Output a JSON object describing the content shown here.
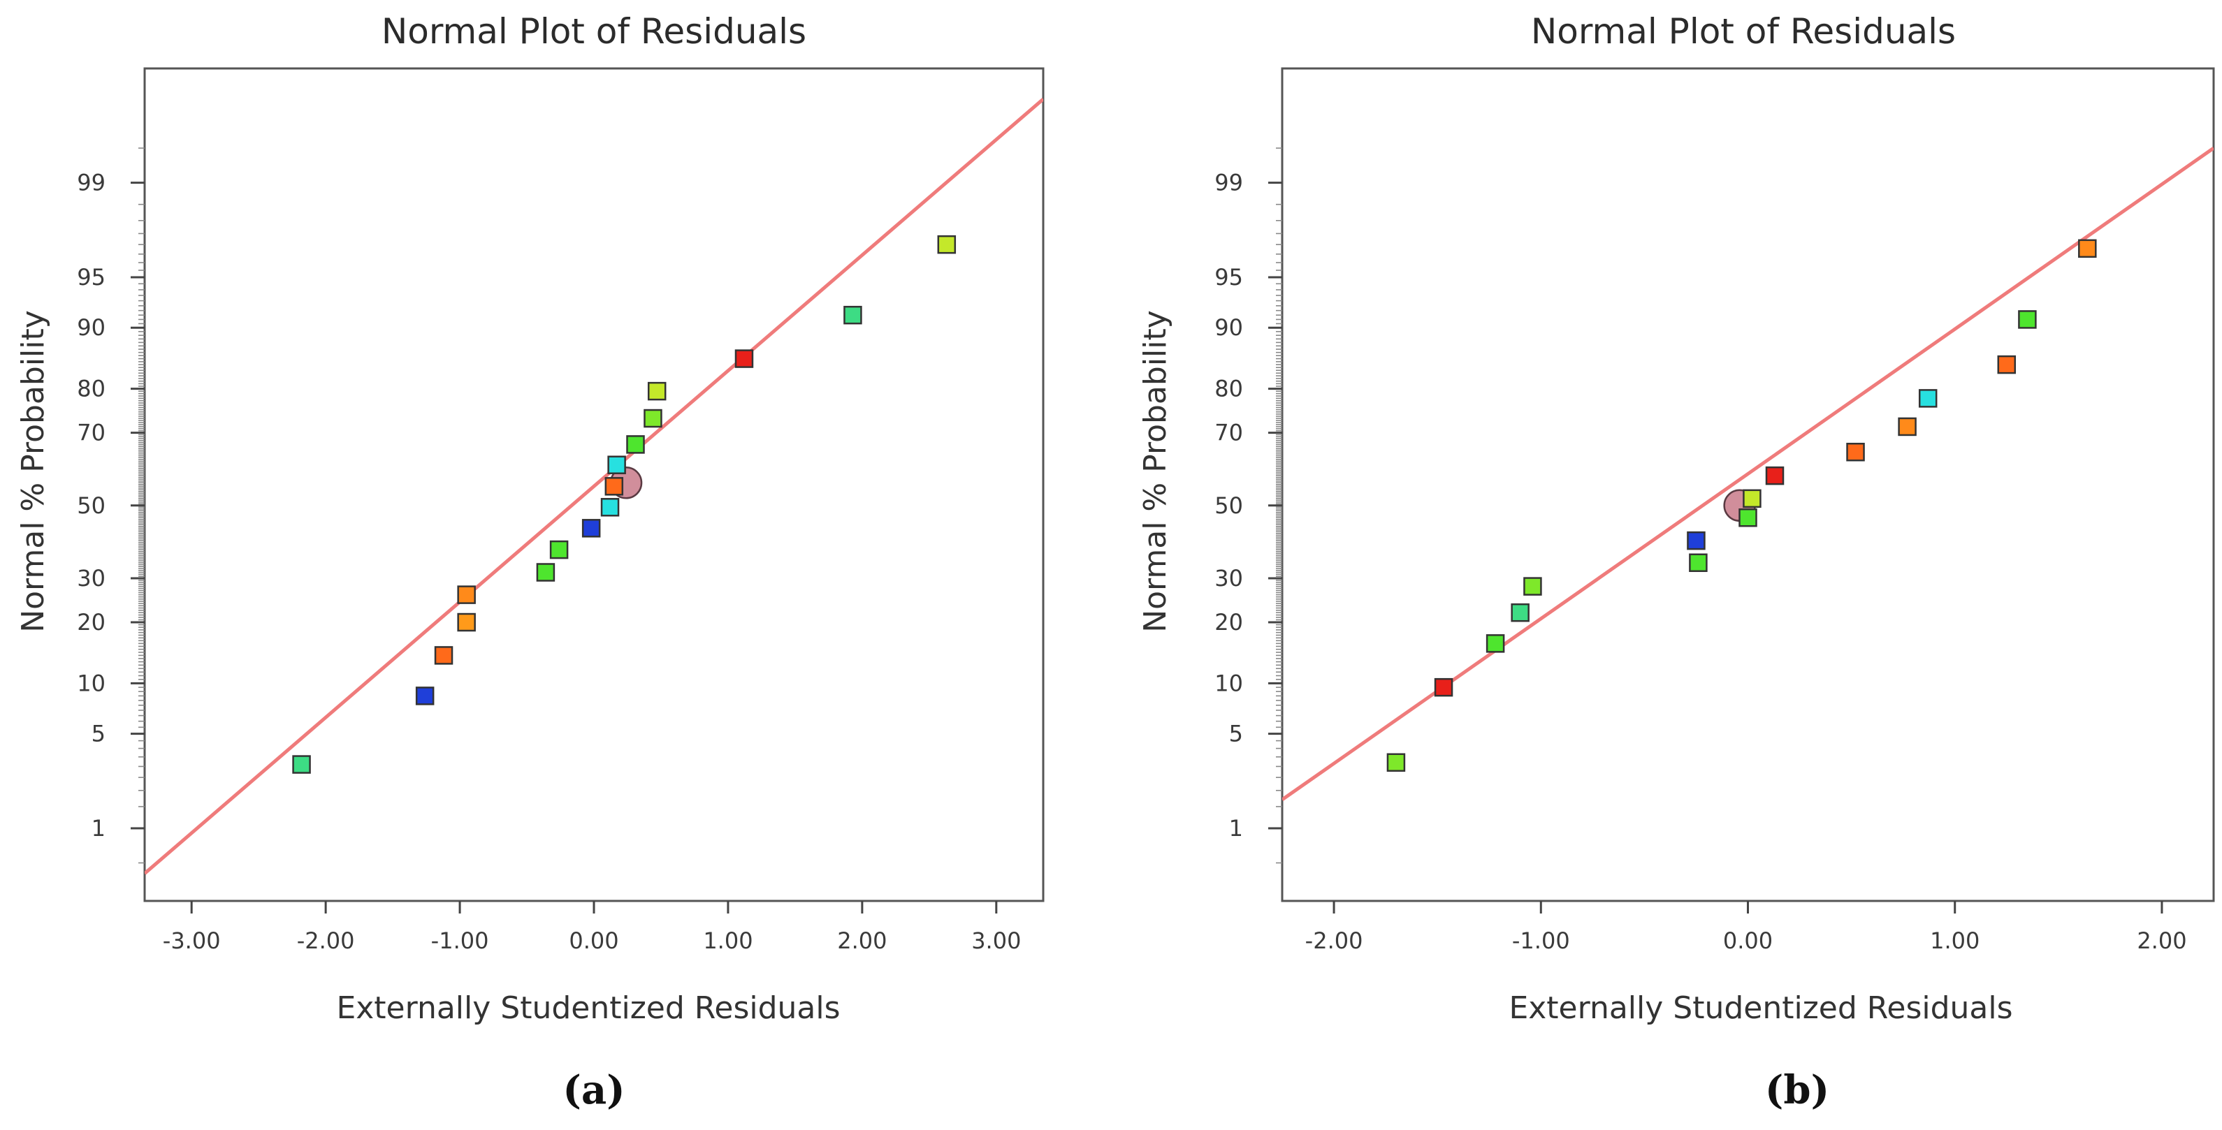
{
  "chart_data": [
    {
      "type": "scatter",
      "title": "Normal Plot of Residuals",
      "xlabel": "Externally Studentized Residuals",
      "ylabel": "Normal % Probability",
      "caption": "(a)",
      "xlim": [
        -3.35,
        3.35
      ],
      "x_ticks": [
        -3,
        -2,
        -1,
        0,
        1,
        2,
        3
      ],
      "x_tick_labels": [
        "-3.00",
        "-2.00",
        "-1.00",
        "0.00",
        "1.00",
        "2.00",
        "3.00"
      ],
      "y_scale": "normal probability",
      "y_ticks": [
        1,
        5,
        10,
        20,
        30,
        50,
        70,
        80,
        90,
        95,
        99
      ],
      "y_tick_labels": [
        "1",
        "5",
        "10",
        "20",
        "30",
        "50",
        "70",
        "80",
        "90",
        "95",
        "99"
      ],
      "reference_line": {
        "color": "#ef7b7b",
        "x0": -3.35,
        "p0": 0.4,
        "x1": 3.35,
        "p1": 99.83
      },
      "points": [
        {
          "x": -2.18,
          "p": 3.1,
          "color": "#3ddc84"
        },
        {
          "x": -1.26,
          "p": 8.5,
          "color": "#1f3fd9"
        },
        {
          "x": -1.12,
          "p": 14,
          "color": "#ff6a1a"
        },
        {
          "x": -0.95,
          "p": 20,
          "color": "#ff9a1a"
        },
        {
          "x": -0.95,
          "p": 26,
          "color": "#ff8a1a"
        },
        {
          "x": -0.36,
          "p": 31.5,
          "color": "#4ee52e"
        },
        {
          "x": -0.26,
          "p": 37.5,
          "color": "#4ee52e"
        },
        {
          "x": -0.02,
          "p": 43.5,
          "color": "#1f3fd9"
        },
        {
          "x": 0.12,
          "p": 49.5,
          "color": "#27e0e0"
        },
        {
          "x": 0.15,
          "p": 55.5,
          "color": "#ff6a1a"
        },
        {
          "x": 0.17,
          "p": 61.5,
          "color": "#27e0e0"
        },
        {
          "x": 0.31,
          "p": 67,
          "color": "#4ee52e"
        },
        {
          "x": 0.44,
          "p": 73.5,
          "color": "#7ee82a"
        },
        {
          "x": 0.47,
          "p": 79.5,
          "color": "#c4e82a"
        },
        {
          "x": 1.12,
          "p": 85.5,
          "color": "#e8201a"
        },
        {
          "x": 1.93,
          "p": 91.5,
          "color": "#3ddc84"
        },
        {
          "x": 2.63,
          "p": 97,
          "color": "#c4e82a"
        }
      ],
      "circled_point": {
        "x": 0.24,
        "p": 56.5
      }
    },
    {
      "type": "scatter",
      "title": "Normal Plot of Residuals",
      "xlabel": "Externally Studentized Residuals",
      "ylabel": "Normal % Probability",
      "caption": "(b)",
      "xlim": [
        -2.25,
        2.25
      ],
      "x_ticks": [
        -2,
        -1,
        0,
        1,
        2
      ],
      "x_tick_labels": [
        "-2.00",
        "-1.00",
        "0.00",
        "1.00",
        "2.00"
      ],
      "y_scale": "normal probability",
      "y_ticks": [
        1,
        5,
        10,
        20,
        30,
        50,
        70,
        80,
        90,
        95,
        99
      ],
      "y_tick_labels": [
        "1",
        "5",
        "10",
        "20",
        "30",
        "50",
        "70",
        "80",
        "90",
        "95",
        "99"
      ],
      "reference_line": {
        "color": "#ef7b7b",
        "x0": -2.25,
        "p0": 1.7,
        "x1": 2.25,
        "p1": 99.5
      },
      "points": [
        {
          "x": -1.7,
          "p": 3.2,
          "color": "#7ee82a"
        },
        {
          "x": -1.47,
          "p": 9.5,
          "color": "#e8201a"
        },
        {
          "x": -1.22,
          "p": 16,
          "color": "#4ee52e"
        },
        {
          "x": -1.1,
          "p": 22,
          "color": "#3ddc84"
        },
        {
          "x": -1.04,
          "p": 28,
          "color": "#7ee82a"
        },
        {
          "x": -0.24,
          "p": 34,
          "color": "#4ee52e"
        },
        {
          "x": -0.25,
          "p": 40,
          "color": "#1f3fd9"
        },
        {
          "x": 0.0,
          "p": 46.5,
          "color": "#4ee52e"
        },
        {
          "x": 0.02,
          "p": 52,
          "color": "#c4e82a"
        },
        {
          "x": 0.13,
          "p": 58.5,
          "color": "#e8201a"
        },
        {
          "x": 0.52,
          "p": 65,
          "color": "#ff6a1a"
        },
        {
          "x": 0.77,
          "p": 71.5,
          "color": "#ff8a1a"
        },
        {
          "x": 0.87,
          "p": 78,
          "color": "#27e0e0"
        },
        {
          "x": 1.25,
          "p": 84.5,
          "color": "#ff6a1a"
        },
        {
          "x": 1.35,
          "p": 91,
          "color": "#4ee52e"
        },
        {
          "x": 1.64,
          "p": 96.8,
          "color": "#ff8a1a"
        }
      ],
      "circled_point": {
        "x": -0.04,
        "p": 50
      }
    }
  ]
}
